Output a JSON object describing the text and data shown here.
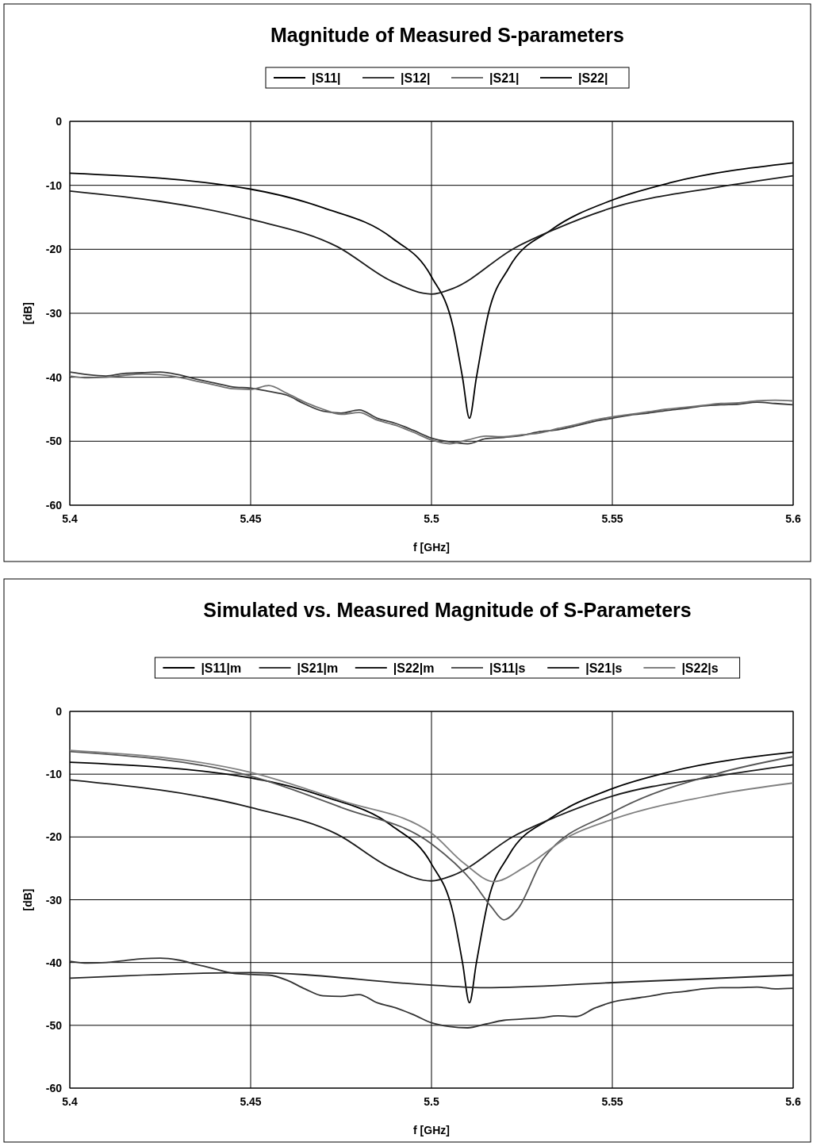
{
  "chart_data": [
    {
      "type": "line",
      "title": "Magnitude of Measured S-parameters",
      "xlabel": "f [GHz]",
      "ylabel": "[dB]",
      "xlim": [
        5.4,
        5.6
      ],
      "xticks": [
        5.4,
        5.45,
        5.5,
        5.55,
        5.6
      ],
      "ylim": [
        -60,
        0
      ],
      "yticks": [
        -60,
        -50,
        -40,
        -30,
        -20,
        -10,
        0
      ],
      "grid": true,
      "legend": "top",
      "line_style": "solid",
      "marker": "none",
      "series": [
        {
          "name": "|S11|",
          "color": "#000000",
          "x": [
            5.4,
            5.45,
            5.47,
            5.489,
            5.5,
            5.506,
            5.5086,
            5.5105,
            5.5124,
            5.5157,
            5.5214,
            5.533,
            5.55,
            5.566,
            5.6
          ],
          "values": [
            -8.1,
            -10.6,
            -13.5,
            -18.2,
            -24.3,
            -32.2,
            -40.1,
            -46.4,
            -40.1,
            -30.1,
            -22.9,
            -17,
            -12.3,
            -9.6,
            -6.5
          ]
        },
        {
          "name": "|S12|",
          "color": "#3a3a3a",
          "x": [
            5.4,
            5.405,
            5.41,
            5.415,
            5.42,
            5.425,
            5.43,
            5.435,
            5.44,
            5.445,
            5.45,
            5.455,
            5.46,
            5.465,
            5.47,
            5.475,
            5.48,
            5.485,
            5.49,
            5.495,
            5.5,
            5.505,
            5.51,
            5.515,
            5.52,
            5.525,
            5.53,
            5.535,
            5.54,
            5.545,
            5.55,
            5.555,
            5.56,
            5.565,
            5.57,
            5.575,
            5.58,
            5.585,
            5.59,
            5.595,
            5.6
          ],
          "values": [
            -39.2,
            -39.6,
            -39.8,
            -39.4,
            -39.3,
            -39.2,
            -39.6,
            -40.3,
            -40.9,
            -41.5,
            -41.7,
            -42.2,
            -42.8,
            -44.2,
            -45.3,
            -45.6,
            -45.1,
            -46.4,
            -47.2,
            -48.3,
            -49.5,
            -50.1,
            -50.4,
            -49.6,
            -49.4,
            -49.1,
            -48.5,
            -48.2,
            -47.6,
            -46.9,
            -46.4,
            -45.9,
            -45.6,
            -45.2,
            -44.9,
            -44.5,
            -44.3,
            -44.2,
            -43.9,
            -44.1,
            -44.3
          ]
        },
        {
          "name": "|S21|",
          "color": "#707070",
          "x": [
            5.4,
            5.405,
            5.41,
            5.415,
            5.42,
            5.425,
            5.43,
            5.435,
            5.44,
            5.445,
            5.45,
            5.455,
            5.46,
            5.465,
            5.47,
            5.475,
            5.48,
            5.485,
            5.49,
            5.495,
            5.5,
            5.505,
            5.51,
            5.515,
            5.52,
            5.525,
            5.53,
            5.535,
            5.54,
            5.545,
            5.55,
            5.555,
            5.56,
            5.565,
            5.57,
            5.575,
            5.58,
            5.585,
            5.59,
            5.595,
            5.6
          ],
          "values": [
            -39.8,
            -40.1,
            -40.0,
            -39.7,
            -39.5,
            -39.6,
            -40.0,
            -40.6,
            -41.2,
            -41.8,
            -41.9,
            -41.3,
            -42.5,
            -43.9,
            -45.0,
            -45.8,
            -45.5,
            -46.7,
            -47.5,
            -48.6,
            -49.8,
            -50.4,
            -49.8,
            -49.2,
            -49.3,
            -49.0,
            -48.7,
            -48.0,
            -47.4,
            -46.7,
            -46.2,
            -45.8,
            -45.4,
            -45.0,
            -44.7,
            -44.4,
            -44.1,
            -44.0,
            -43.7,
            -43.6,
            -43.7
          ]
        },
        {
          "name": "|S22|",
          "color": "#1a1a1a",
          "x": [
            5.4,
            5.45,
            5.474,
            5.489,
            5.5,
            5.506,
            5.523,
            5.534,
            5.55,
            5.579,
            5.6
          ],
          "values": [
            -10.9,
            -15.3,
            -19.6,
            -25,
            -27,
            -26.1,
            -19.8,
            -16.9,
            -13.5,
            -10.3,
            -8.5
          ]
        }
      ]
    },
    {
      "type": "line",
      "title": "Simulated vs. Measured Magnitude of S-Parameters",
      "xlabel": "f [GHz]",
      "ylabel": "[dB]",
      "xlim": [
        5.4,
        5.6
      ],
      "xticks": [
        5.4,
        5.45,
        5.5,
        5.55,
        5.6
      ],
      "ylim": [
        -60,
        0
      ],
      "yticks": [
        -60,
        -50,
        -40,
        -30,
        -20,
        -10,
        0
      ],
      "grid": true,
      "legend": "top",
      "line_style": "solid",
      "marker": "none",
      "series": [
        {
          "name": "|S11|m",
          "color": "#000000",
          "x": [
            5.4,
            5.45,
            5.47,
            5.489,
            5.5,
            5.506,
            5.5086,
            5.5105,
            5.5124,
            5.5157,
            5.5214,
            5.533,
            5.55,
            5.566,
            5.6
          ],
          "values": [
            -8.1,
            -10.6,
            -13.5,
            -18.2,
            -24.3,
            -32.2,
            -40.1,
            -46.4,
            -40.1,
            -30.1,
            -22.9,
            -17,
            -12.3,
            -9.6,
            -6.5
          ]
        },
        {
          "name": "|S21|m",
          "color": "#333333",
          "x": [
            5.4,
            5.405,
            5.41,
            5.415,
            5.42,
            5.425,
            5.43,
            5.435,
            5.44,
            5.445,
            5.45,
            5.455,
            5.46,
            5.465,
            5.47,
            5.475,
            5.48,
            5.485,
            5.49,
            5.495,
            5.5,
            5.505,
            5.51,
            5.515,
            5.52,
            5.525,
            5.53,
            5.535,
            5.54,
            5.545,
            5.55,
            5.555,
            5.56,
            5.565,
            5.57,
            5.575,
            5.58,
            5.585,
            5.59,
            5.595,
            5.6
          ],
          "values": [
            -39.8,
            -40.1,
            -40.0,
            -39.7,
            -39.4,
            -39.3,
            -39.6,
            -40.3,
            -41.0,
            -41.7,
            -41.9,
            -42.0,
            -42.8,
            -44.2,
            -45.3,
            -45.4,
            -45.1,
            -46.4,
            -47.2,
            -48.3,
            -49.6,
            -50.2,
            -50.4,
            -49.8,
            -49.2,
            -49.0,
            -48.8,
            -48.5,
            -48.6,
            -47.3,
            -46.3,
            -45.8,
            -45.4,
            -44.9,
            -44.6,
            -44.2,
            -44.0,
            -44.0,
            -43.9,
            -44.2,
            -44.1
          ]
        },
        {
          "name": "|S22|m",
          "color": "#1a1a1a",
          "x": [
            5.4,
            5.45,
            5.474,
            5.489,
            5.5,
            5.506,
            5.523,
            5.534,
            5.55,
            5.579,
            5.6
          ],
          "values": [
            -10.9,
            -15.3,
            -19.6,
            -25,
            -27,
            -26.1,
            -19.8,
            -16.9,
            -13.5,
            -10.3,
            -8.5
          ]
        },
        {
          "name": "|S11|s",
          "color": "#555555",
          "x": [
            5.4,
            5.45,
            5.4755,
            5.5,
            5.5113,
            5.5165,
            5.52,
            5.5238,
            5.531,
            5.55,
            5.579,
            5.6
          ],
          "values": [
            -6.4,
            -10.3,
            -15.4,
            -21.1,
            -27.1,
            -31.1,
            -33.2,
            -31.5,
            -23.4,
            -16.1,
            -9.9,
            -7.2
          ]
        },
        {
          "name": "|S21|s",
          "color": "#262626",
          "x": [
            5.4,
            5.45,
            5.5,
            5.5145,
            5.55,
            5.6
          ],
          "values": [
            -42.5,
            -41.6,
            -43.6,
            -44,
            -43.2,
            -42
          ]
        },
        {
          "name": "|S22|s",
          "color": "#808080",
          "x": [
            5.4,
            5.45,
            5.4755,
            5.5,
            5.509,
            5.5173,
            5.5255,
            5.5384,
            5.55,
            5.579,
            5.6
          ],
          "values": [
            -6.2,
            -9.7,
            -14.3,
            -19.4,
            -24.2,
            -27.1,
            -24.9,
            -19.8,
            -17.2,
            -13.2,
            -11.4
          ]
        }
      ]
    }
  ]
}
